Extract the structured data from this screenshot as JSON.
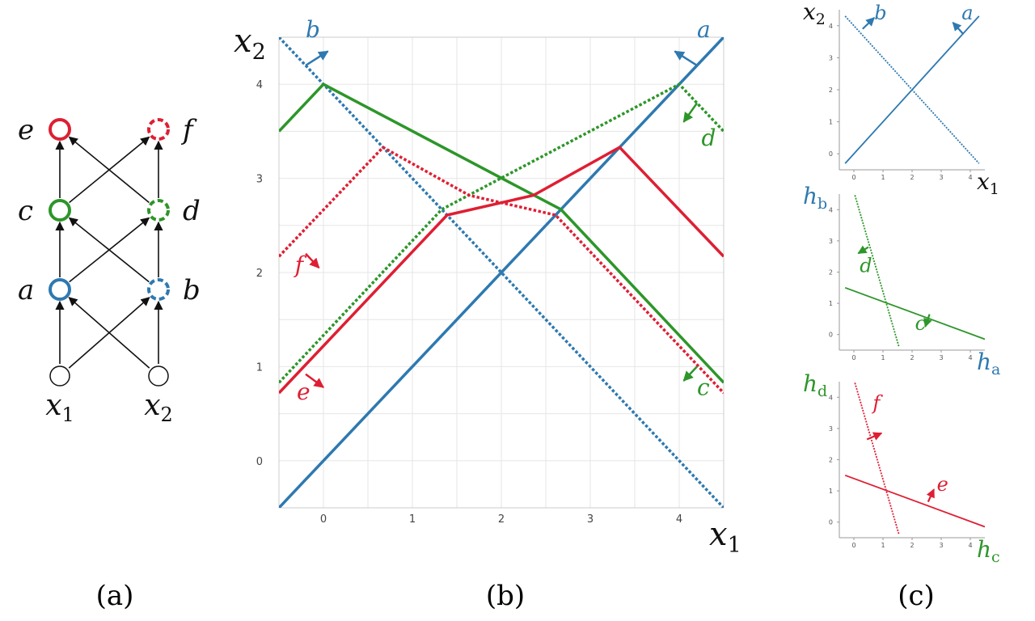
{
  "colors": {
    "blue": "#2e79b0",
    "green": "#2d9629",
    "red": "#de1f33",
    "black": "#111111"
  },
  "panel_a": {
    "nodes": [
      {
        "id": "e",
        "label": "e",
        "color": "red",
        "dashed": false
      },
      {
        "id": "f",
        "label": "f",
        "color": "red",
        "dashed": true
      },
      {
        "id": "c",
        "label": "c",
        "color": "green",
        "dashed": false
      },
      {
        "id": "d",
        "label": "d",
        "color": "green",
        "dashed": true
      },
      {
        "id": "a",
        "label": "a",
        "color": "blue",
        "dashed": false
      },
      {
        "id": "b",
        "label": "b",
        "color": "blue",
        "dashed": true
      },
      {
        "id": "x1",
        "label": "x",
        "sub": "1",
        "color": "black",
        "dashed": false
      },
      {
        "id": "x2",
        "label": "x",
        "sub": "2",
        "color": "black",
        "dashed": false
      }
    ],
    "edges": [
      [
        "x1",
        "a"
      ],
      [
        "x1",
        "b"
      ],
      [
        "x2",
        "a"
      ],
      [
        "x2",
        "b"
      ],
      [
        "a",
        "c"
      ],
      [
        "a",
        "d"
      ],
      [
        "b",
        "c"
      ],
      [
        "b",
        "d"
      ],
      [
        "c",
        "e"
      ],
      [
        "c",
        "f"
      ],
      [
        "d",
        "e"
      ],
      [
        "d",
        "f"
      ]
    ]
  },
  "panel_b": {
    "x_axis": {
      "label": "x",
      "sub": "1",
      "range": [
        -0.5,
        4.5
      ],
      "ticks": [
        "0",
        "1",
        "2",
        "3",
        "4"
      ]
    },
    "y_axis": {
      "label": "x",
      "sub": "2",
      "range": [
        -0.5,
        4.5
      ],
      "ticks": [
        "0",
        "1",
        "2",
        "3",
        "4"
      ]
    },
    "lines": [
      {
        "id": "a",
        "label": "a",
        "color": "blue",
        "dashed": false,
        "points": [
          [
            -0.5,
            -0.5
          ],
          [
            4.5,
            4.5
          ]
        ]
      },
      {
        "id": "b",
        "label": "b",
        "color": "blue",
        "dashed": true,
        "points": [
          [
            -0.5,
            4.5
          ],
          [
            4.5,
            -0.5
          ]
        ]
      },
      {
        "id": "c",
        "label": "c",
        "color": "green",
        "dashed": false,
        "points": [
          [
            -0.5,
            3.5
          ],
          [
            0,
            4
          ],
          [
            2.67,
            2.67
          ],
          [
            4.5,
            0.83
          ]
        ]
      },
      {
        "id": "d",
        "label": "d",
        "color": "green",
        "dashed": true,
        "points": [
          [
            -0.5,
            0.83
          ],
          [
            1.33,
            2.67
          ],
          [
            4,
            4
          ],
          [
            4.5,
            3.5
          ]
        ]
      },
      {
        "id": "e",
        "label": "e",
        "color": "red",
        "dashed": false,
        "points": [
          [
            -0.5,
            0.72
          ],
          [
            1.39,
            2.61
          ],
          [
            2.36,
            2.82
          ],
          [
            3.33,
            3.33
          ],
          [
            4.5,
            2.17
          ]
        ]
      },
      {
        "id": "f",
        "label": "f",
        "color": "red",
        "dashed": true,
        "points": [
          [
            -0.5,
            2.17
          ],
          [
            0.67,
            3.33
          ],
          [
            1.64,
            2.82
          ],
          [
            2.61,
            2.61
          ],
          [
            4.5,
            0.72
          ]
        ]
      }
    ],
    "labels": [
      {
        "text": "a",
        "color": "blue",
        "at": [
          4.2,
          4.5
        ]
      },
      {
        "text": "b",
        "color": "blue",
        "at": [
          -0.2,
          4.5
        ]
      },
      {
        "text": "c",
        "color": "green",
        "at": [
          4.2,
          0.7
        ]
      },
      {
        "text": "d",
        "color": "green",
        "at": [
          4.25,
          3.35
        ]
      },
      {
        "text": "e",
        "color": "red",
        "at": [
          -0.3,
          0.65
        ]
      },
      {
        "text": "f",
        "color": "red",
        "at": [
          -0.32,
          2.0
        ]
      }
    ],
    "arrows": [
      {
        "color": "blue",
        "from": [
          4.2,
          4.2
        ],
        "to": [
          3.95,
          4.35
        ]
      },
      {
        "color": "blue",
        "from": [
          -0.2,
          4.2
        ],
        "to": [
          0.05,
          4.35
        ]
      },
      {
        "color": "green",
        "from": [
          4.2,
          3.8
        ],
        "to": [
          4.05,
          3.6
        ]
      },
      {
        "color": "green",
        "from": [
          4.2,
          1.0
        ],
        "to": [
          4.05,
          0.85
        ]
      },
      {
        "color": "red",
        "from": [
          -0.2,
          0.92
        ],
        "to": [
          0.0,
          0.78
        ]
      },
      {
        "color": "red",
        "from": [
          -0.2,
          2.2
        ],
        "to": [
          -0.05,
          2.05
        ]
      }
    ]
  },
  "panel_c": {
    "subplots": [
      {
        "x_label": "x",
        "x_sub": "1",
        "y_label": "x",
        "y_sub": "2",
        "x_color": "black",
        "y_color": "black",
        "x_ticks": [
          "0",
          "1",
          "2",
          "3",
          "4"
        ],
        "y_ticks": [
          "0",
          "1",
          "2",
          "3",
          "4"
        ],
        "lines": [
          {
            "label": "a",
            "color": "blue",
            "dashed": false,
            "points": [
              [
                -0.3,
                -0.3
              ],
              [
                4.3,
                4.3
              ]
            ]
          },
          {
            "label": "b",
            "color": "blue",
            "dashed": true,
            "points": [
              [
                -0.3,
                4.3
              ],
              [
                4.3,
                -0.3
              ]
            ]
          }
        ],
        "labels": [
          {
            "text": "b",
            "color": "blue",
            "at": [
              0.7,
              4.2
            ]
          },
          {
            "text": "a",
            "color": "blue",
            "at": [
              3.7,
              4.2
            ]
          }
        ],
        "arrows": [
          {
            "color": "blue",
            "from": [
              0.3,
              3.9
            ],
            "to": [
              0.7,
              4.25
            ]
          },
          {
            "color": "blue",
            "from": [
              3.75,
              3.75
            ],
            "to": [
              3.4,
              4.1
            ]
          }
        ]
      },
      {
        "x_label": "h",
        "x_sub": "a",
        "y_label": "h",
        "y_sub": "b",
        "x_color": "blue",
        "y_color": "blue",
        "x_ticks": [
          "0",
          "1",
          "2",
          "3",
          "4"
        ],
        "y_ticks": [
          "0",
          "1",
          "2",
          "3",
          "4"
        ],
        "lines": [
          {
            "label": "c",
            "color": "green",
            "dashed": false,
            "points": [
              [
                -0.3,
                1.5
              ],
              [
                4.5,
                -0.15
              ]
            ]
          },
          {
            "label": "d",
            "color": "green",
            "dashed": true,
            "points": [
              [
                -0.1,
                4.9
              ],
              [
                1.55,
                -0.4
              ]
            ]
          }
        ],
        "labels": [
          {
            "text": "d",
            "color": "green",
            "at": [
              0.2,
              2.0
            ]
          },
          {
            "text": "c",
            "color": "green",
            "at": [
              2.1,
              0.15
            ]
          }
        ],
        "arrows": [
          {
            "color": "green",
            "from": [
              0.5,
              2.8
            ],
            "to": [
              0.15,
              2.6
            ]
          },
          {
            "color": "green",
            "from": [
              2.6,
              0.65
            ],
            "to": [
              2.45,
              0.25
            ]
          }
        ]
      },
      {
        "x_label": "h",
        "x_sub": "c",
        "y_label": "h",
        "y_sub": "d",
        "x_color": "green",
        "y_color": "green",
        "x_ticks": [
          "0",
          "1",
          "2",
          "3",
          "4"
        ],
        "y_ticks": [
          "0",
          "1",
          "2",
          "3",
          "4"
        ],
        "lines": [
          {
            "label": "e",
            "color": "red",
            "dashed": false,
            "points": [
              [
                -0.3,
                1.5
              ],
              [
                4.5,
                -0.15
              ]
            ]
          },
          {
            "label": "f",
            "color": "red",
            "dashed": true,
            "points": [
              [
                -0.1,
                4.9
              ],
              [
                1.55,
                -0.4
              ]
            ]
          }
        ],
        "labels": [
          {
            "text": "f",
            "color": "red",
            "at": [
              0.65,
              3.6
            ]
          },
          {
            "text": "e",
            "color": "red",
            "at": [
              2.85,
              1.0
            ]
          }
        ],
        "arrows": [
          {
            "color": "red",
            "from": [
              0.45,
              2.65
            ],
            "to": [
              0.95,
              2.85
            ]
          },
          {
            "color": "red",
            "from": [
              2.55,
              0.65
            ],
            "to": [
              2.75,
              1.05
            ]
          }
        ]
      }
    ]
  },
  "captions": {
    "a": "(a)",
    "b": "(b)",
    "c": "(c)"
  }
}
